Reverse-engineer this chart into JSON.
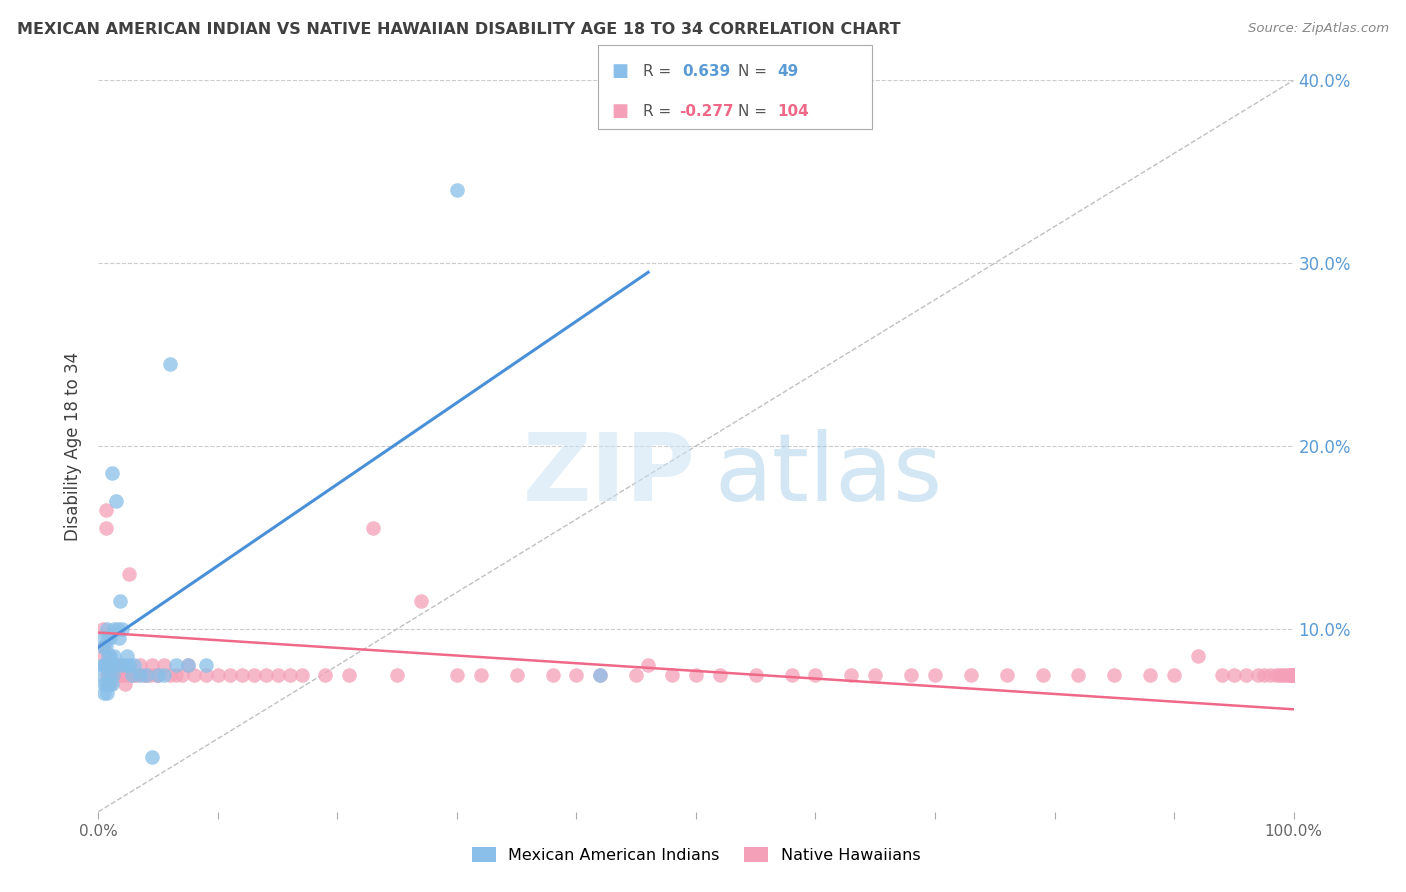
{
  "title": "MEXICAN AMERICAN INDIAN VS NATIVE HAWAIIAN DISABILITY AGE 18 TO 34 CORRELATION CHART",
  "source": "Source: ZipAtlas.com",
  "ylabel": "Disability Age 18 to 34",
  "xlim": [
    0,
    1.0
  ],
  "ylim": [
    0,
    0.4
  ],
  "xtick_positions": [
    0.0,
    0.1,
    0.2,
    0.3,
    0.4,
    0.5,
    0.6,
    0.7,
    0.8,
    0.9,
    1.0
  ],
  "xticklabels": [
    "0.0%",
    "",
    "",
    "",
    "",
    "",
    "",
    "",
    "",
    "",
    "100.0%"
  ],
  "ytick_positions": [
    0.0,
    0.1,
    0.2,
    0.3,
    0.4
  ],
  "yticklabels_right": [
    "",
    "10.0%",
    "20.0%",
    "30.0%",
    "40.0%"
  ],
  "blue_R": 0.639,
  "blue_N": 49,
  "pink_R": -0.277,
  "pink_N": 104,
  "blue_color": "#89bfe8",
  "pink_color": "#f4a0b8",
  "blue_line_color": "#4a90d9",
  "pink_line_color": "#f06888",
  "diagonal_color": "#c0c0c0",
  "background_color": "#ffffff",
  "grid_color": "#cccccc",
  "title_color": "#404040",
  "axis_label_color": "#404040",
  "right_tick_color": "#5b9bd5",
  "legend_labels": [
    "Mexican American Indians",
    "Native Hawaiians"
  ],
  "blue_line_x0": 0.0,
  "blue_line_y0": 0.09,
  "blue_line_x1": 0.46,
  "blue_line_y1": 0.295,
  "pink_line_x0": 0.0,
  "pink_line_y0": 0.098,
  "pink_line_x1": 1.0,
  "pink_line_y1": 0.056,
  "blue_scatter_x": [
    0.003,
    0.004,
    0.004,
    0.005,
    0.005,
    0.005,
    0.005,
    0.006,
    0.006,
    0.006,
    0.007,
    0.007,
    0.007,
    0.008,
    0.008,
    0.008,
    0.009,
    0.009,
    0.01,
    0.01,
    0.01,
    0.011,
    0.011,
    0.012,
    0.013,
    0.013,
    0.014,
    0.015,
    0.016,
    0.017,
    0.018,
    0.019,
    0.02,
    0.022,
    0.024,
    0.026,
    0.028,
    0.03,
    0.035,
    0.04,
    0.045,
    0.05,
    0.055,
    0.06,
    0.065,
    0.075,
    0.09,
    0.3,
    0.42
  ],
  "blue_scatter_y": [
    0.075,
    0.08,
    0.09,
    0.065,
    0.07,
    0.08,
    0.095,
    0.07,
    0.08,
    0.09,
    0.065,
    0.08,
    0.1,
    0.07,
    0.085,
    0.095,
    0.07,
    0.075,
    0.08,
    0.085,
    0.095,
    0.07,
    0.185,
    0.075,
    0.085,
    0.1,
    0.08,
    0.17,
    0.1,
    0.095,
    0.115,
    0.08,
    0.1,
    0.08,
    0.085,
    0.08,
    0.075,
    0.08,
    0.075,
    0.075,
    0.03,
    0.075,
    0.075,
    0.245,
    0.08,
    0.08,
    0.08,
    0.34,
    0.075
  ],
  "pink_scatter_x": [
    0.004,
    0.005,
    0.005,
    0.006,
    0.006,
    0.007,
    0.007,
    0.008,
    0.008,
    0.009,
    0.009,
    0.01,
    0.01,
    0.011,
    0.012,
    0.013,
    0.014,
    0.015,
    0.016,
    0.017,
    0.018,
    0.019,
    0.02,
    0.022,
    0.024,
    0.026,
    0.028,
    0.03,
    0.032,
    0.035,
    0.038,
    0.04,
    0.043,
    0.045,
    0.048,
    0.05,
    0.055,
    0.06,
    0.065,
    0.07,
    0.075,
    0.08,
    0.09,
    0.1,
    0.11,
    0.12,
    0.13,
    0.14,
    0.15,
    0.16,
    0.17,
    0.19,
    0.21,
    0.23,
    0.25,
    0.27,
    0.3,
    0.32,
    0.35,
    0.38,
    0.4,
    0.42,
    0.45,
    0.46,
    0.48,
    0.5,
    0.52,
    0.55,
    0.58,
    0.6,
    0.63,
    0.65,
    0.68,
    0.7,
    0.73,
    0.76,
    0.79,
    0.82,
    0.85,
    0.88,
    0.9,
    0.92,
    0.94,
    0.95,
    0.96,
    0.97,
    0.975,
    0.98,
    0.985,
    0.988,
    0.99,
    0.993,
    0.995,
    0.997,
    0.998,
    0.999,
    0.999,
    0.999,
    0.999,
    0.999,
    0.999,
    0.999,
    0.999,
    0.999
  ],
  "pink_scatter_y": [
    0.1,
    0.09,
    0.085,
    0.165,
    0.155,
    0.075,
    0.08,
    0.085,
    0.075,
    0.075,
    0.07,
    0.07,
    0.075,
    0.08,
    0.075,
    0.08,
    0.075,
    0.075,
    0.075,
    0.08,
    0.075,
    0.08,
    0.075,
    0.07,
    0.075,
    0.13,
    0.075,
    0.075,
    0.075,
    0.08,
    0.075,
    0.075,
    0.075,
    0.08,
    0.075,
    0.075,
    0.08,
    0.075,
    0.075,
    0.075,
    0.08,
    0.075,
    0.075,
    0.075,
    0.075,
    0.075,
    0.075,
    0.075,
    0.075,
    0.075,
    0.075,
    0.075,
    0.075,
    0.155,
    0.075,
    0.115,
    0.075,
    0.075,
    0.075,
    0.075,
    0.075,
    0.075,
    0.075,
    0.08,
    0.075,
    0.075,
    0.075,
    0.075,
    0.075,
    0.075,
    0.075,
    0.075,
    0.075,
    0.075,
    0.075,
    0.075,
    0.075,
    0.075,
    0.075,
    0.075,
    0.075,
    0.085,
    0.075,
    0.075,
    0.075,
    0.075,
    0.075,
    0.075,
    0.075,
    0.075,
    0.075,
    0.075,
    0.075,
    0.075,
    0.075,
    0.075,
    0.075,
    0.075,
    0.075,
    0.075,
    0.075,
    0.075,
    0.075,
    0.075
  ]
}
